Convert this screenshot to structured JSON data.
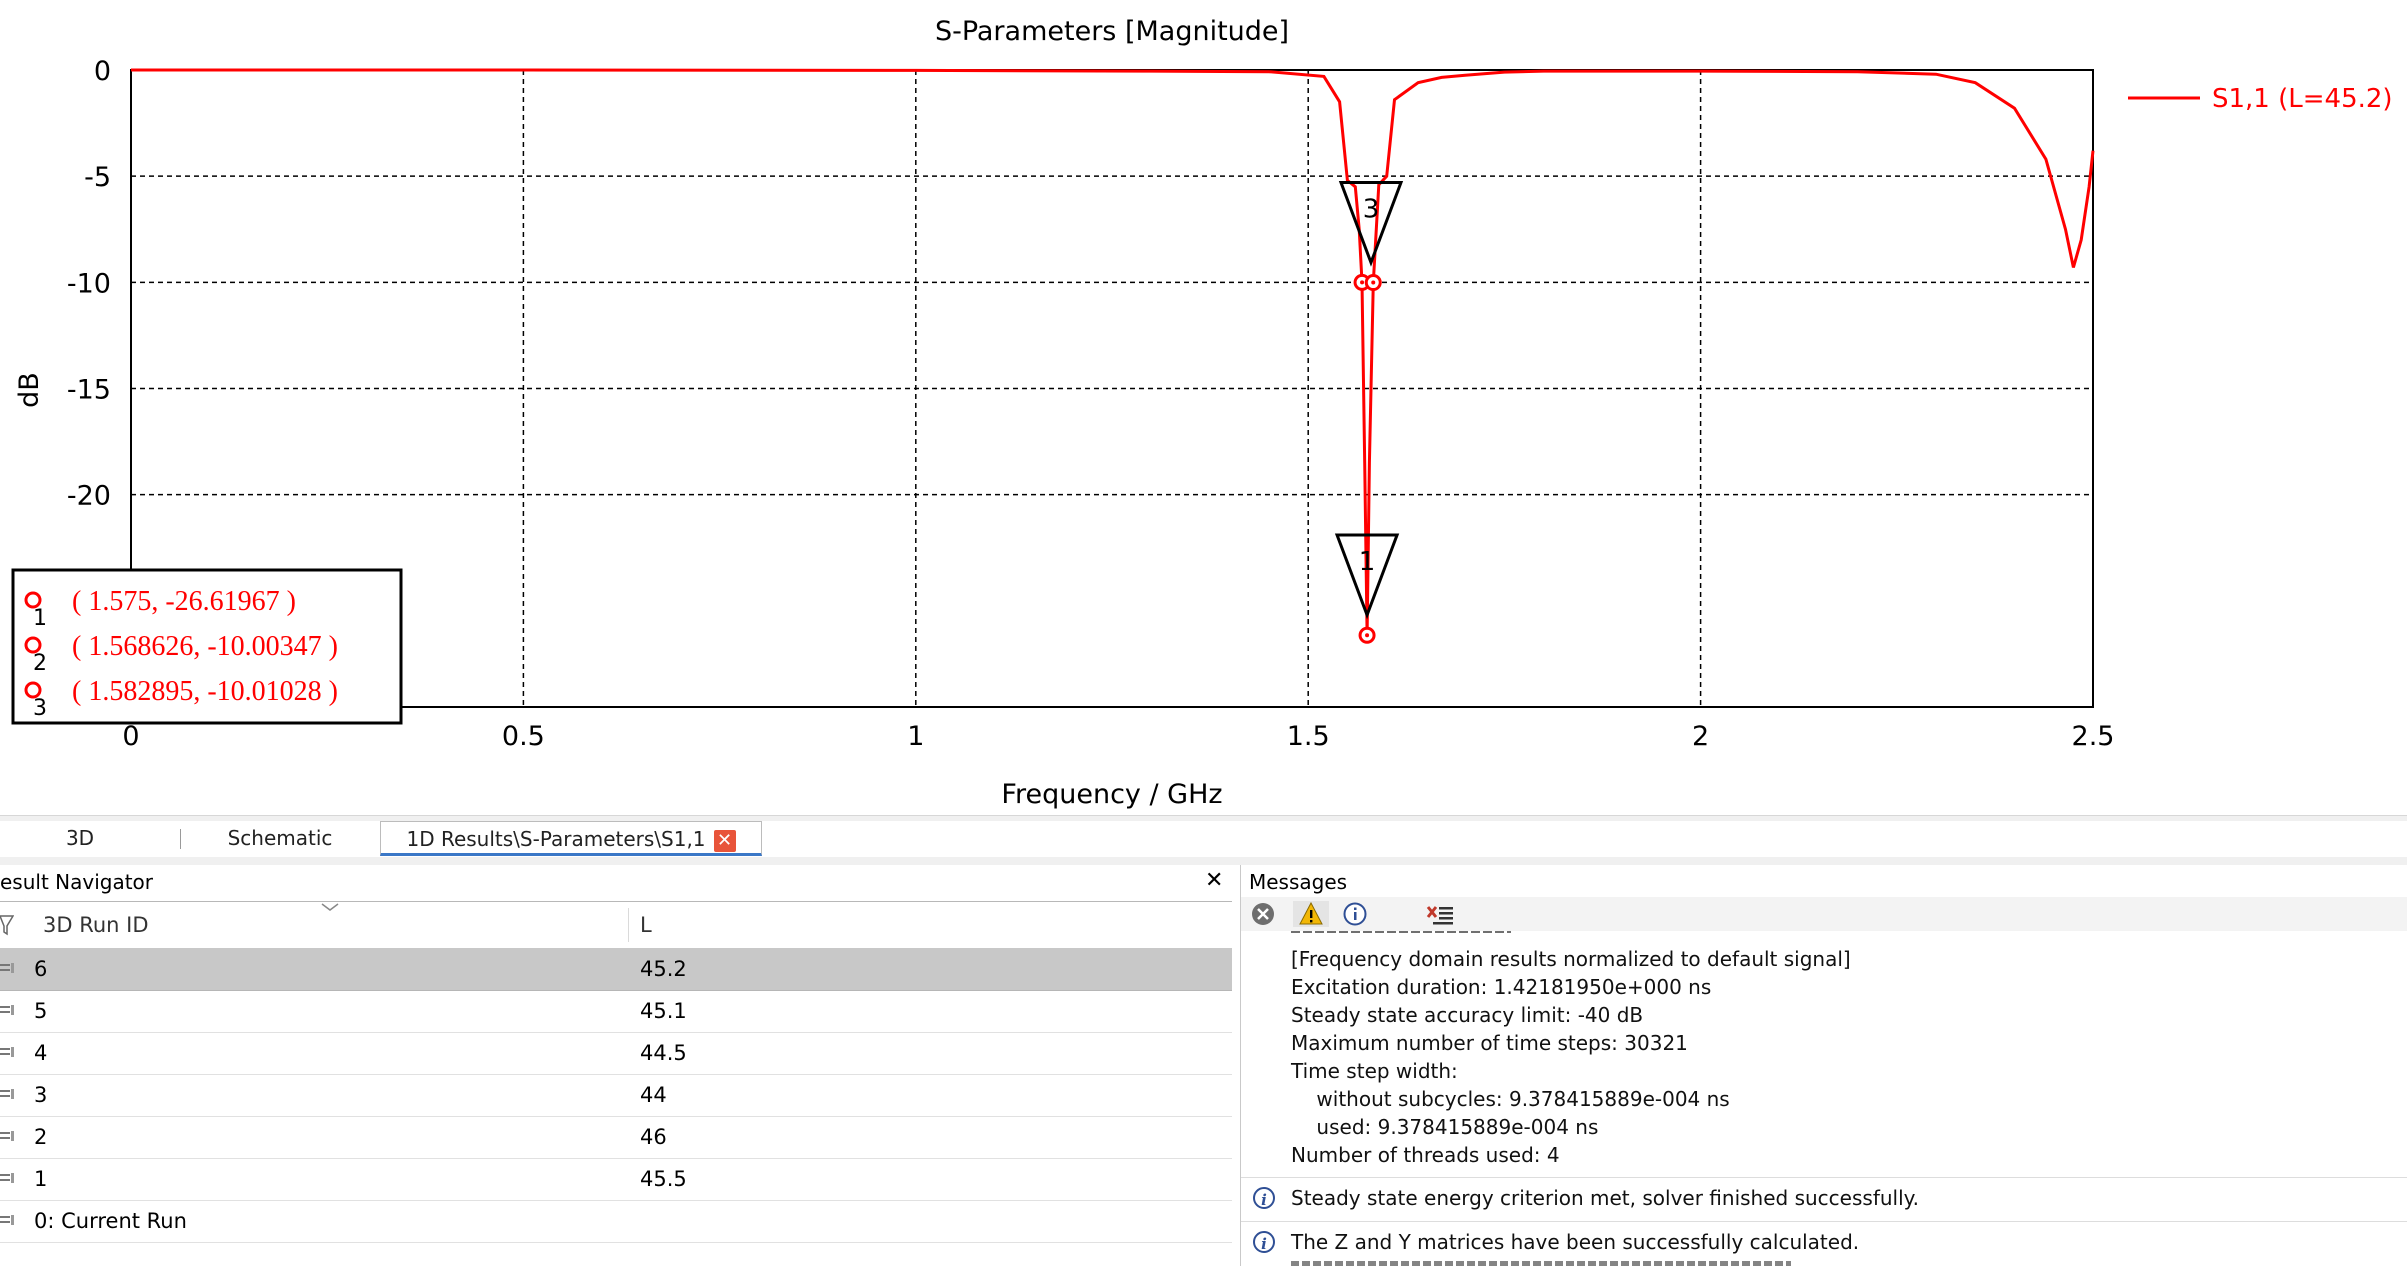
{
  "chart_data": {
    "type": "line",
    "title": "S-Parameters [Magnitude]",
    "xlabel": "Frequency / GHz",
    "ylabel": "dB",
    "xlim": [
      0,
      2.5
    ],
    "ylim": [
      -30,
      0
    ],
    "xticks": [
      "0",
      "0.5",
      "1",
      "1.5",
      "2",
      "2.5"
    ],
    "yticks": [
      "0",
      "-5",
      "-10",
      "-15",
      "-20"
    ],
    "grid": "dashed",
    "legend_position": "right",
    "series": [
      {
        "name": "S1,1 (L=45.2)",
        "color": "#ff0000",
        "points": [
          [
            0,
            0
          ],
          [
            0.5,
            0
          ],
          [
            1.0,
            -0.02
          ],
          [
            1.3,
            -0.05
          ],
          [
            1.45,
            -0.08
          ],
          [
            1.52,
            -0.3
          ],
          [
            1.54,
            -1.5
          ],
          [
            1.55,
            -5.2
          ],
          [
            1.56,
            -5.5
          ],
          [
            1.565,
            -7.5
          ],
          [
            1.5686,
            -10.0
          ],
          [
            1.572,
            -18.5
          ],
          [
            1.575,
            -26.62
          ],
          [
            1.578,
            -18.5
          ],
          [
            1.5829,
            -10.01
          ],
          [
            1.59,
            -5.4
          ],
          [
            1.6,
            -5.0
          ],
          [
            1.61,
            -1.4
          ],
          [
            1.64,
            -0.6
          ],
          [
            1.67,
            -0.35
          ],
          [
            1.7,
            -0.25
          ],
          [
            1.75,
            -0.1
          ],
          [
            1.8,
            -0.05
          ],
          [
            2.0,
            -0.05
          ],
          [
            2.2,
            -0.08
          ],
          [
            2.3,
            -0.2
          ],
          [
            2.35,
            -0.6
          ],
          [
            2.4,
            -1.8
          ],
          [
            2.44,
            -4.2
          ],
          [
            2.465,
            -7.5
          ],
          [
            2.475,
            -9.3
          ],
          [
            2.485,
            -8.0
          ],
          [
            2.495,
            -5.5
          ],
          [
            2.5,
            -3.8
          ]
        ]
      }
    ],
    "markers": [
      {
        "id": "1",
        "x": 1.575,
        "y": -26.61967,
        "label": "( 1.575, -26.61967 )"
      },
      {
        "id": "2",
        "x": 1.568626,
        "y": -10.00347,
        "label": "( 1.568626, -10.00347 )"
      },
      {
        "id": "3",
        "x": 1.582895,
        "y": -10.01028,
        "label": "( 1.582895, -10.01028 )"
      }
    ],
    "triangle_markers": [
      {
        "label": "3",
        "x": 1.58,
        "y": -5.3
      },
      {
        "label": "1",
        "x": 1.575,
        "y": -21.9
      }
    ]
  },
  "tabs": {
    "items": [
      {
        "label": "3D"
      },
      {
        "label": "Schematic"
      },
      {
        "label": "1D Results\\S-Parameters\\S1,1"
      }
    ],
    "close_icon": "close-icon"
  },
  "navigator": {
    "title": "esult Navigator",
    "close_label": "✕",
    "columns": [
      "3D Run ID",
      "L"
    ],
    "rows": [
      {
        "id": "6",
        "l": "45.2",
        "selected": true
      },
      {
        "id": "5",
        "l": "45.1"
      },
      {
        "id": "4",
        "l": "44.5"
      },
      {
        "id": "3",
        "l": "44"
      },
      {
        "id": "2",
        "l": "46"
      },
      {
        "id": "1",
        "l": "45.5"
      },
      {
        "id": "0: Current Run",
        "l": ""
      }
    ]
  },
  "messages": {
    "title": "Messages",
    "lines": [
      "[Frequency domain results normalized to default signal]",
      "Excitation duration: 1.42181950e+000 ns",
      "Steady state accuracy limit: -40 dB",
      "Maximum number of time steps: 30321",
      "Time step width:",
      "    without subcycles: 9.378415889e-004 ns",
      "    used: 9.378415889e-004 ns",
      "Number of threads used: 4"
    ],
    "info1": "Steady state energy criterion met, solver finished successfully.",
    "info2": "The Z and Y matrices have been successfully calculated."
  }
}
